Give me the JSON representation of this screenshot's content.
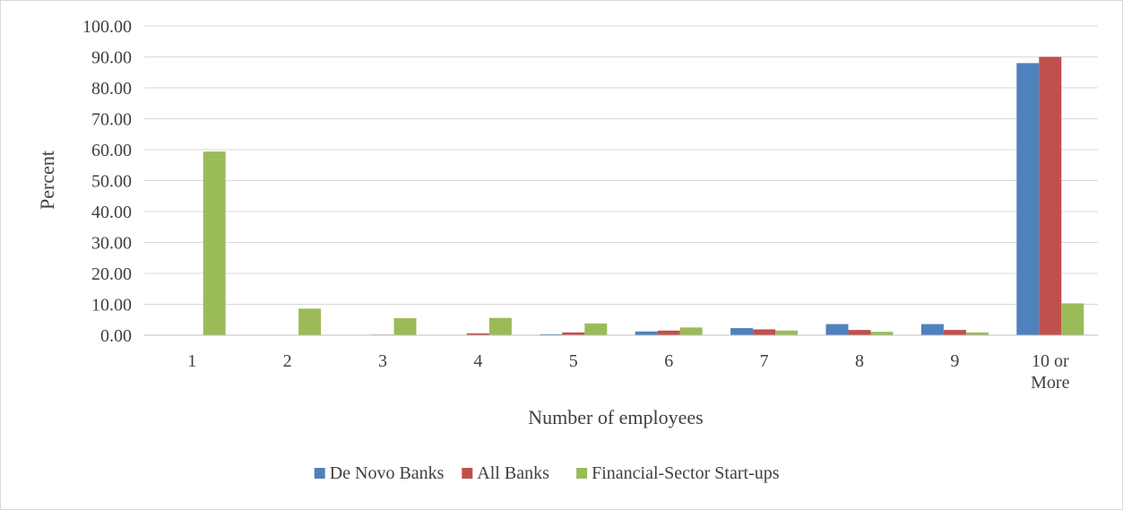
{
  "chart_data": {
    "type": "bar",
    "title": "",
    "xlabel": "Number of employees",
    "ylabel": "Percent",
    "ylim": [
      0,
      100
    ],
    "yticks": [
      "0.00",
      "10.00",
      "20.00",
      "30.00",
      "40.00",
      "50.00",
      "60.00",
      "70.00",
      "80.00",
      "90.00",
      "100.00"
    ],
    "grid": true,
    "legend_position": "bottom",
    "categories": [
      [
        "1"
      ],
      [
        "2"
      ],
      [
        "3"
      ],
      [
        "4"
      ],
      [
        "5"
      ],
      [
        "6"
      ],
      [
        "7"
      ],
      [
        "8"
      ],
      [
        "9"
      ],
      [
        "10 or",
        "More"
      ]
    ],
    "series": [
      {
        "name": "De Novo Banks",
        "color": "#4f81bd",
        "values": [
          0,
          0,
          0,
          0,
          0.3,
          1.2,
          2.3,
          3.6,
          3.6,
          88.0
        ]
      },
      {
        "name": "All Banks",
        "color": "#c0504d",
        "values": [
          0,
          0,
          0.2,
          0.6,
          0.9,
          1.5,
          1.9,
          1.7,
          1.7,
          90.0
        ]
      },
      {
        "name": "Financial-Sector Start-ups",
        "color": "#9bbb59",
        "values": [
          59.4,
          8.6,
          5.5,
          5.6,
          3.8,
          2.5,
          1.5,
          1.1,
          0.9,
          10.3
        ]
      }
    ]
  }
}
